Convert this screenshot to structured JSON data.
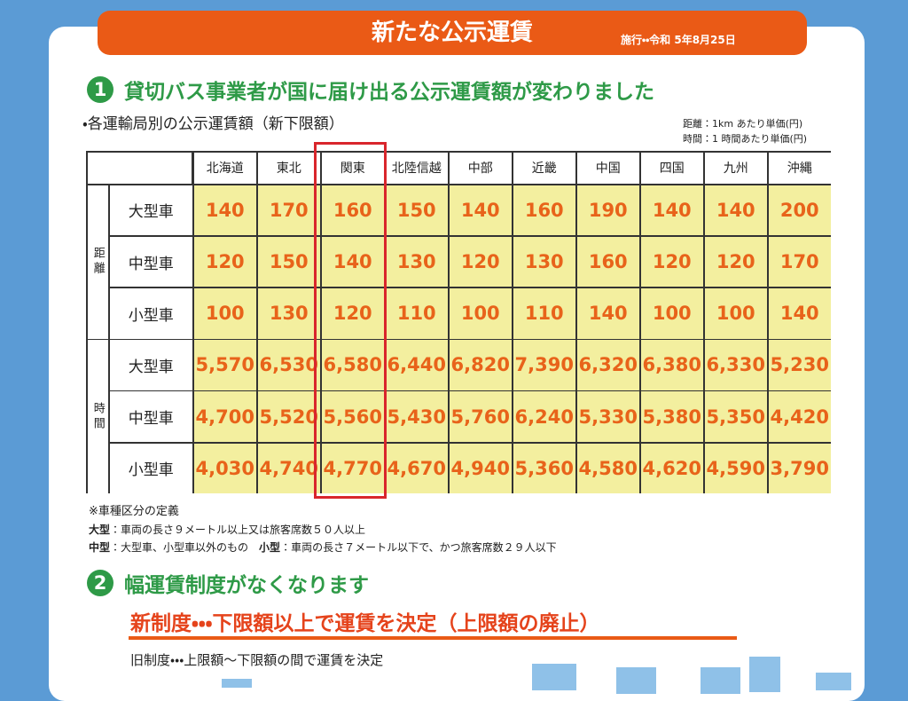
{
  "header": {
    "title": "新たな公示運賃",
    "date": "施行・・令和 5年8月25日"
  },
  "section1": {
    "number": "1",
    "heading": "貸切バス事業者が国に届け出る公示運賃額が変わりました",
    "subheading": "・各運輸局別の公示運賃額（新下限額）",
    "units": [
      "距離：1km あたり単価(円)",
      "時間：1 時間あたり単価(円)"
    ]
  },
  "table": {
    "columns": [
      "北海道",
      "東北",
      "関東",
      "北陸信越",
      "中部",
      "近畿",
      "中国",
      "四国",
      "九州",
      "沖縄"
    ],
    "groups": [
      {
        "label": "距離",
        "rows": [
          {
            "type": "大型車",
            "values": [
              "140",
              "170",
              "160",
              "150",
              "140",
              "160",
              "190",
              "140",
              "140",
              "200"
            ]
          },
          {
            "type": "中型車",
            "values": [
              "120",
              "150",
              "140",
              "130",
              "120",
              "130",
              "160",
              "120",
              "120",
              "170"
            ]
          },
          {
            "type": "小型車",
            "values": [
              "100",
              "130",
              "120",
              "110",
              "100",
              "110",
              "140",
              "100",
              "100",
              "140"
            ]
          }
        ]
      },
      {
        "label": "時間",
        "rows": [
          {
            "type": "大型車",
            "values": [
              "5,570",
              "6,530",
              "6,580",
              "6,440",
              "6,820",
              "7,390",
              "6,320",
              "6,380",
              "6,330",
              "5,230"
            ]
          },
          {
            "type": "中型車",
            "values": [
              "4,700",
              "5,520",
              "5,560",
              "5,430",
              "5,760",
              "6,240",
              "5,330",
              "5,380",
              "5,350",
              "4,420"
            ]
          },
          {
            "type": "小型車",
            "values": [
              "4,030",
              "4,740",
              "4,770",
              "4,670",
              "4,940",
              "5,360",
              "4,580",
              "4,620",
              "4,590",
              "3,790"
            ]
          }
        ]
      }
    ]
  },
  "notes": {
    "title": "※車種区分の定義",
    "lines": [
      [
        {
          "label": "大型",
          "text": "：車両の長さ９メートル以上又は旅客席数５０人以上"
        }
      ],
      [
        {
          "label": "中型",
          "text": "：大型車、小型車以外のもの"
        },
        {
          "label": "小型",
          "text": "：車両の長さ７メートル以下で、かつ旅客席数２９人以下"
        }
      ]
    ]
  },
  "section2": {
    "number": "2",
    "heading": "幅運賃制度がなくなります",
    "new_system": "新制度・・・下限額以上で運賃を決定（上限額の廃止）",
    "old_system": "旧制度・・・上限額〜下限額の間で運賃を決定"
  }
}
